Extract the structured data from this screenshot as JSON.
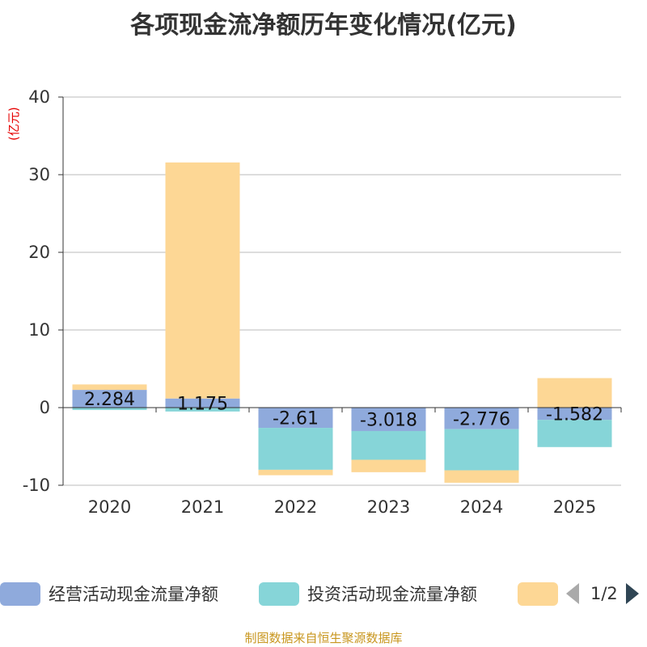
{
  "title": "各项现金流净额历年变化情况(亿元)",
  "unit_label": "(亿元)",
  "source": "制图数据来自恒生聚源数据库",
  "legend": {
    "items": [
      {
        "label": "经营活动现金流量净额",
        "color": "#8faadc"
      },
      {
        "label": "投资活动现金流量净额",
        "color": "#86d5d8"
      },
      {
        "label": "",
        "color": "#fdd795"
      }
    ],
    "page_text": "1/2"
  },
  "chart_data": {
    "type": "bar",
    "stacked": true,
    "categories": [
      "2020",
      "2021",
      "2022",
      "2023",
      "2024",
      "2025"
    ],
    "series": [
      {
        "name": "经营活动现金流量净额",
        "color": "#8faadc",
        "values": [
          2.284,
          1.175,
          -2.61,
          -3.018,
          -2.776,
          -1.582
        ],
        "labels": [
          "2.284",
          "1.175",
          "-2.61",
          "-3.018",
          "-2.776",
          "-1.582"
        ]
      },
      {
        "name": "投资活动现金流量净额",
        "color": "#86d5d8",
        "values": [
          -0.3,
          -0.5,
          -5.4,
          -3.7,
          -5.3,
          -3.5
        ]
      },
      {
        "color": "#fdd795",
        "values": [
          0.7,
          30.4,
          -0.7,
          -1.6,
          -1.6,
          3.8
        ]
      }
    ],
    "ylim": [
      -10,
      40
    ],
    "yticks": [
      -10,
      0,
      10,
      20,
      30,
      40
    ],
    "grid": true,
    "legend_position": "bottom"
  }
}
